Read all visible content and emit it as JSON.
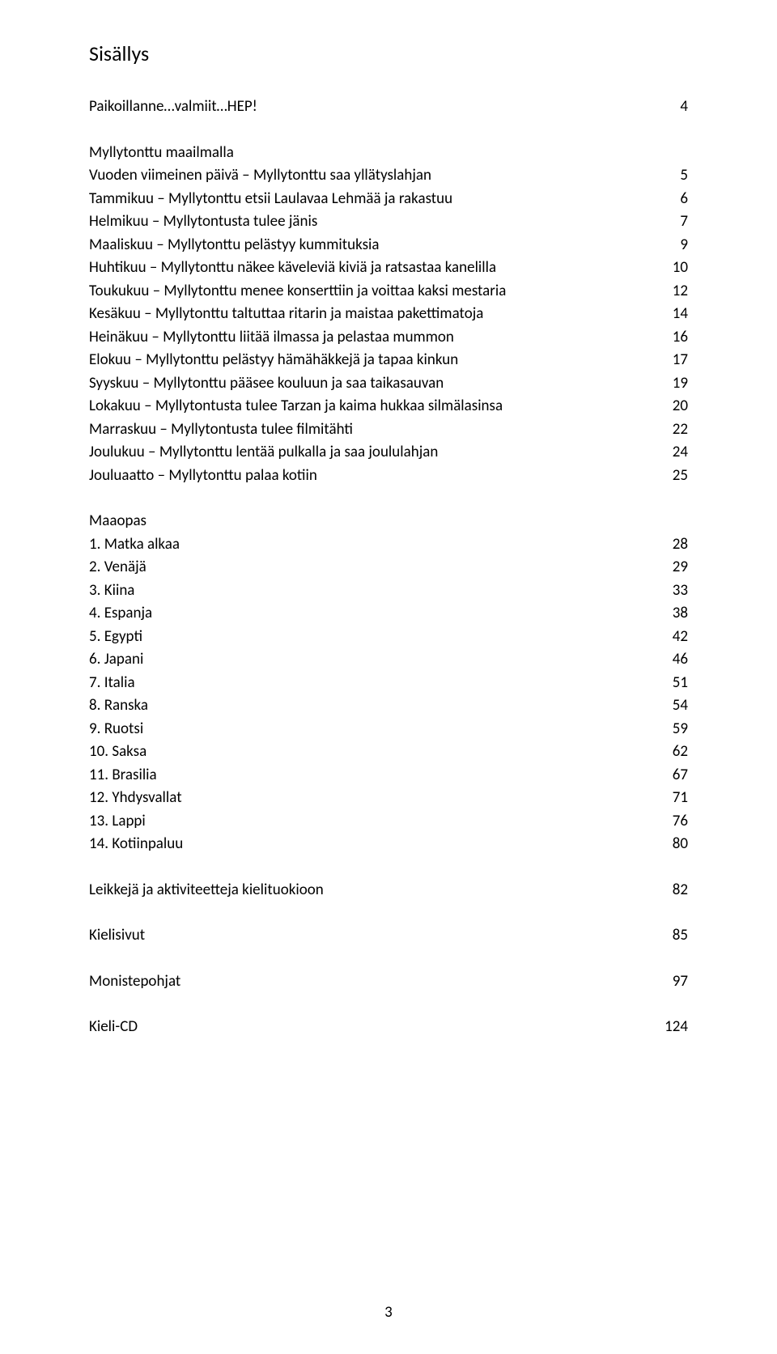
{
  "title": "Sisällys",
  "section1": {
    "heading_row": {
      "label": "Paikoillanne…valmiit…HEP!",
      "page": "4"
    },
    "subhead": "Myllytonttu maailmalla",
    "rows": [
      {
        "label": "Vuoden viimeinen päivä – Myllytonttu saa yllätyslahjan",
        "page": "5"
      },
      {
        "label": "Tammikuu – Myllytonttu etsii Laulavaa Lehmää ja rakastuu",
        "page": "6"
      },
      {
        "label": "Helmikuu – Myllytontusta tulee jänis",
        "page": "7"
      },
      {
        "label": "Maaliskuu – Myllytonttu pelästyy kummituksia",
        "page": "9"
      },
      {
        "label": "Huhtikuu – Myllytonttu näkee käveleviä kiviä ja ratsastaa kanelilla",
        "page": "10"
      },
      {
        "label": "Toukukuu – Myllytonttu menee konserttiin ja voittaa kaksi mestaria",
        "page": "12"
      },
      {
        "label": "Kesäkuu – Myllytonttu taltuttaa ritarin ja maistaa pakettimatoja",
        "page": "14"
      },
      {
        "label": "Heinäkuu – Myllytonttu liitää ilmassa ja pelastaa mummon",
        "page": "16"
      },
      {
        "label": "Elokuu – Myllytonttu pelästyy hämähäkkejä ja tapaa kinkun",
        "page": "17"
      },
      {
        "label": "Syyskuu – Myllytonttu pääsee kouluun ja saa taikasauvan",
        "page": "19"
      },
      {
        "label": "Lokakuu – Myllytontusta tulee Tarzan ja kaima hukkaa silmälasinsa",
        "page": "20"
      },
      {
        "label": "Marraskuu – Myllytontusta tulee filmitähti",
        "page": "22"
      },
      {
        "label": "Joulukuu – Myllytonttu lentää pulkalla ja saa joululahjan",
        "page": "24"
      },
      {
        "label": "Jouluaatto – Myllytonttu palaa kotiin",
        "page": "25"
      }
    ]
  },
  "section2": {
    "subhead": "Maaopas",
    "rows": [
      {
        "label": "1. Matka alkaa",
        "page": "28"
      },
      {
        "label": "2. Venäjä",
        "page": "29"
      },
      {
        "label": "3. Kiina",
        "page": "33"
      },
      {
        "label": "4. Espanja",
        "page": "38"
      },
      {
        "label": "5. Egypti",
        "page": "42"
      },
      {
        "label": "6. Japani",
        "page": "46"
      },
      {
        "label": "7. Italia",
        "page": "51"
      },
      {
        "label": "8. Ranska",
        "page": "54"
      },
      {
        "label": "9. Ruotsi",
        "page": "59"
      },
      {
        "label": "10. Saksa",
        "page": "62"
      },
      {
        "label": "11. Brasilia",
        "page": "67"
      },
      {
        "label": "12. Yhdysvallat",
        "page": "71"
      },
      {
        "label": "13. Lappi",
        "page": "76"
      },
      {
        "label": "14. Kotiinpaluu",
        "page": "80"
      }
    ]
  },
  "extras": [
    {
      "label": "Leikkejä ja aktiviteetteja kielituokioon",
      "page": "82"
    },
    {
      "label": "Kielisivut",
      "page": "85"
    },
    {
      "label": "Monistepohjat",
      "page": "97"
    },
    {
      "label": "Kieli-CD",
      "page": "124"
    }
  ],
  "page_number": "3"
}
